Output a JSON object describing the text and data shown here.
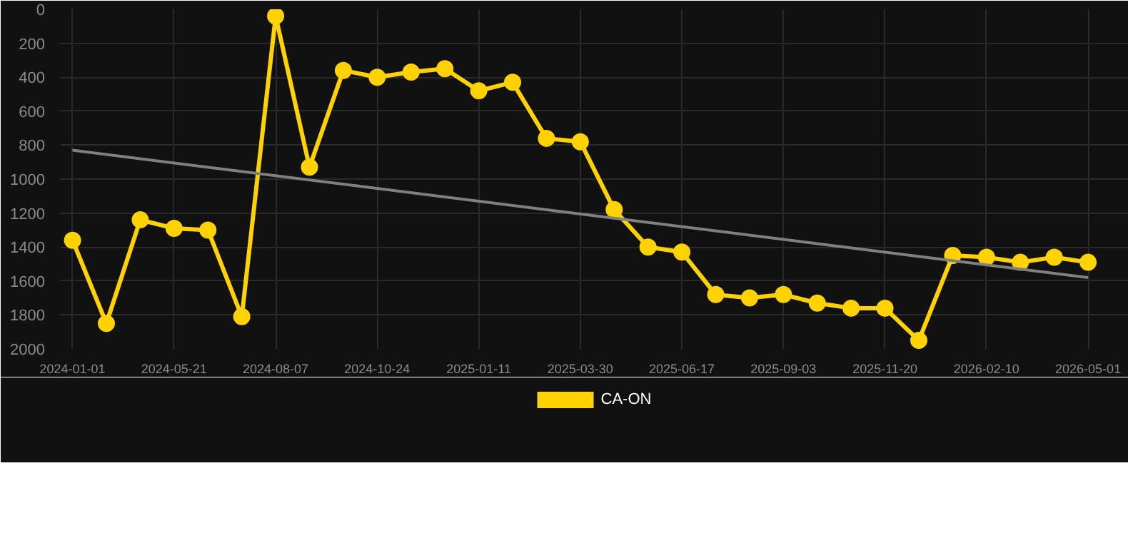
{
  "chart_data": {
    "type": "line",
    "categories": [
      "2024-01-01",
      null,
      null,
      "2024-05-21",
      null,
      null,
      "2024-08-07",
      null,
      null,
      "2024-10-24",
      null,
      null,
      "2025-01-11",
      null,
      null,
      "2025-03-30",
      null,
      null,
      "2025-06-17",
      null,
      null,
      "2025-09-03",
      null,
      null,
      "2025-11-20",
      null,
      null,
      "2026-02-10",
      null,
      null,
      "2026-05-01"
    ],
    "series": [
      {
        "name": "CA-ON",
        "color": "#ffd200",
        "marker": "circle",
        "values": [
          1360,
          1850,
          1240,
          1290,
          1300,
          1810,
          40,
          930,
          360,
          400,
          370,
          350,
          480,
          430,
          760,
          780,
          1180,
          1400,
          1430,
          1680,
          1700,
          1680,
          1730,
          1760,
          1760,
          1950,
          1450,
          1460,
          1490,
          1460,
          1490
        ]
      },
      {
        "type": "line",
        "color": "#808080",
        "marker": "none",
        "values": [
          830,
          null,
          null,
          null,
          null,
          null,
          null,
          null,
          null,
          null,
          null,
          null,
          null,
          null,
          null,
          null,
          null,
          null,
          null,
          null,
          null,
          null,
          null,
          null,
          null,
          null,
          null,
          null,
          null,
          null,
          1580
        ]
      }
    ],
    "ylim": [
      2000,
      0
    ],
    "yticks": [
      0,
      200,
      400,
      600,
      800,
      1000,
      1200,
      1400,
      1600,
      1800,
      2000
    ],
    "grid": true,
    "legend": "bottom"
  }
}
